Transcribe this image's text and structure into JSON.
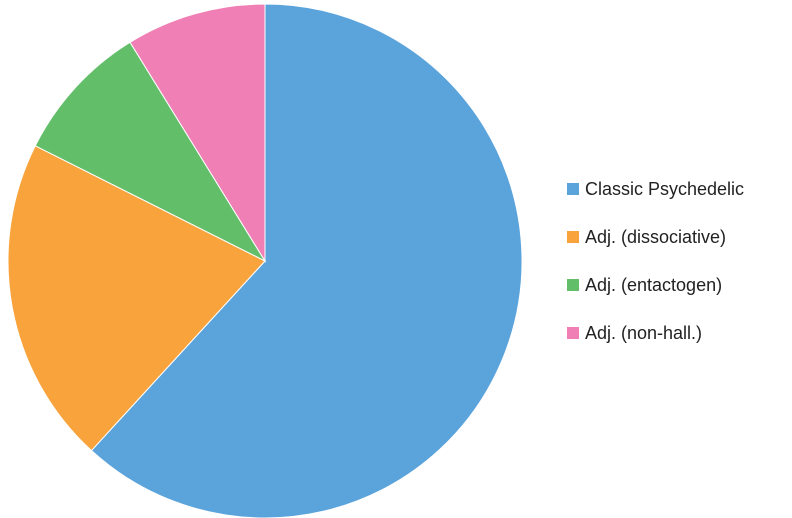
{
  "chart_data": {
    "type": "pie",
    "categories": [
      "Classic Psychedelic",
      "Adj. (dissociative)",
      "Adj. (entactogen)",
      "Adj. (non-hall.)"
    ],
    "values": [
      61.8,
      20.6,
      8.8,
      8.8
    ],
    "colors": [
      "#5ba3db",
      "#f8a33c",
      "#63be6a",
      "#ef7fb5"
    ],
    "legend": "right"
  }
}
